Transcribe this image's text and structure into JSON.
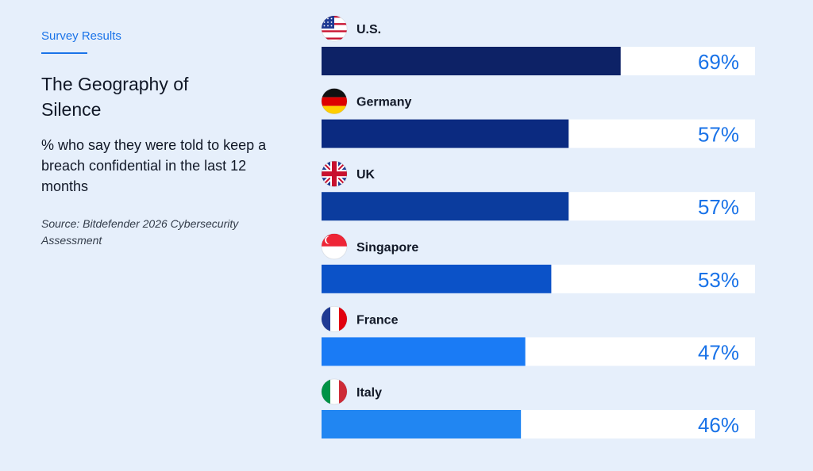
{
  "header": {
    "eyebrow": "Survey Results",
    "title": "The Geography of Silence",
    "subtitle": "% who say they were told to keep a breach confidential in the last 12 months",
    "source": "Source: Bitdefender 2026 Cybersecurity Assessment"
  },
  "colors": {
    "background": "#e6effb",
    "track": "#ffffff",
    "accent": "#1a73e8",
    "bars": [
      "#0d2266",
      "#0b2a80",
      "#0b3c9e",
      "#0b52c8",
      "#1a7bf5",
      "#2186f2"
    ]
  },
  "chart_data": {
    "type": "bar",
    "orientation": "horizontal",
    "categories": [
      "U.S.",
      "Germany",
      "UK",
      "Singapore",
      "France",
      "Italy"
    ],
    "values": [
      69,
      57,
      57,
      53,
      47,
      46
    ],
    "value_labels": [
      "69%",
      "57%",
      "57%",
      "53%",
      "47%",
      "46%"
    ],
    "flag_icons": [
      "us-flag-icon",
      "germany-flag-icon",
      "uk-flag-icon",
      "singapore-flag-icon",
      "france-flag-icon",
      "italy-flag-icon"
    ],
    "xlim": [
      0,
      100
    ],
    "grid": false,
    "title": "The Geography of Silence"
  }
}
